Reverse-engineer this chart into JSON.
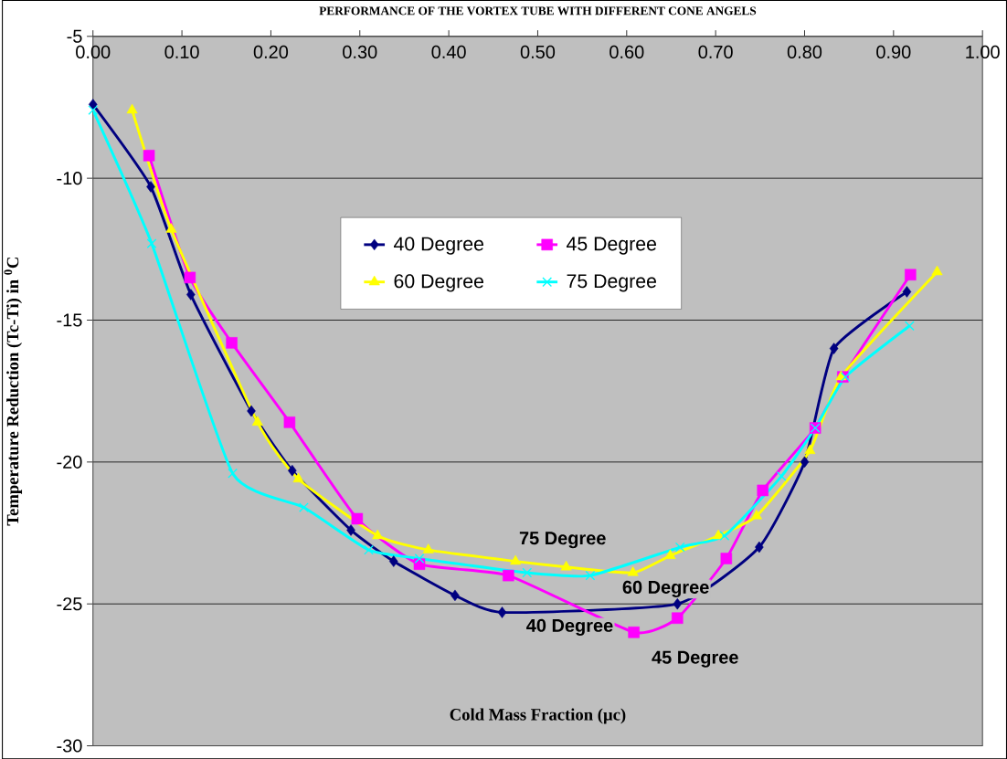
{
  "chart_data": {
    "type": "line",
    "title": "PERFORMANCE OF THE VORTEX TUBE WITH DIFFERENT CONE ANGELS",
    "xlabel": "Cold Mass Fraction (µc)",
    "ylabel": "Temperature Reduction (Tc-Ti) in $^{0}$C",
    "xlim": [
      0,
      1
    ],
    "ylim": [
      -30,
      -5
    ],
    "xticks": [
      {
        "value": 0,
        "label": "0.00"
      },
      {
        "value": 0.1,
        "label": "0.10"
      },
      {
        "value": 0.2,
        "label": "0.20"
      },
      {
        "value": 0.3,
        "label": "0.30"
      },
      {
        "value": 0.4,
        "label": "0.40"
      },
      {
        "value": 0.5,
        "label": "0.50"
      },
      {
        "value": 0.6,
        "label": "0.60"
      },
      {
        "value": 0.7,
        "label": "0.70"
      },
      {
        "value": 0.8,
        "label": "0.80"
      },
      {
        "value": 0.9,
        "label": "0.90"
      },
      {
        "value": 1,
        "label": "1.00"
      }
    ],
    "yticks": [
      -30,
      -25,
      -20,
      -15,
      -10,
      -5
    ],
    "grid": "y",
    "legend": "top",
    "series": [
      {
        "name": "40 Degree",
        "color": "#000080",
        "marker": "diamond",
        "x": [
          0,
          0.065,
          0.11,
          0.178,
          0.224,
          0.29,
          0.338,
          0.407,
          0.46,
          0.657,
          0.749,
          0.8,
          0.833,
          0.915
        ],
        "values": [
          -7.4,
          -10.3,
          -14.1,
          -18.2,
          -20.3,
          -22.4,
          -23.5,
          -24.7,
          -25.3,
          -25.0,
          -23.0,
          -20.0,
          -16.0,
          -14.0
        ]
      },
      {
        "name": "45 Degree",
        "color": "#ff00ff",
        "marker": "square",
        "x": [
          0.063,
          0.109,
          0.156,
          0.221,
          0.297,
          0.367,
          0.467,
          0.608,
          0.657,
          0.712,
          0.753,
          0.812,
          0.843,
          0.919
        ],
        "values": [
          -9.2,
          -13.5,
          -15.8,
          -18.6,
          -22.0,
          -23.6,
          -24.0,
          -26.0,
          -25.5,
          -23.4,
          -21.0,
          -18.8,
          -17.0,
          -13.4
        ]
      },
      {
        "name": "60 Degree",
        "color": "#ffff00",
        "marker": "triangle",
        "x": [
          0.044,
          0.088,
          0.185,
          0.231,
          0.32,
          0.377,
          0.475,
          0.532,
          0.607,
          0.649,
          0.703,
          0.746,
          0.806,
          0.841,
          0.949
        ],
        "values": [
          -7.6,
          -11.8,
          -18.6,
          -20.6,
          -22.6,
          -23.1,
          -23.5,
          -23.7,
          -23.9,
          -23.3,
          -22.6,
          -21.9,
          -19.6,
          -17.0,
          -13.3
        ]
      },
      {
        "name": "75 Degree",
        "color": "#00ffff",
        "marker": "cross",
        "x": [
          0,
          0.066,
          0.157,
          0.237,
          0.31,
          0.367,
          0.488,
          0.559,
          0.66,
          0.71,
          0.774,
          0.812,
          0.846,
          0.918
        ],
        "values": [
          -7.6,
          -12.3,
          -20.4,
          -21.6,
          -23.1,
          -23.4,
          -23.9,
          -24.0,
          -23.0,
          -22.6,
          -20.5,
          -18.8,
          -17.0,
          -15.2
        ]
      }
    ],
    "annotations": [
      "75 Degree",
      "60 Degree",
      "40 Degree",
      "45 Degree"
    ]
  }
}
